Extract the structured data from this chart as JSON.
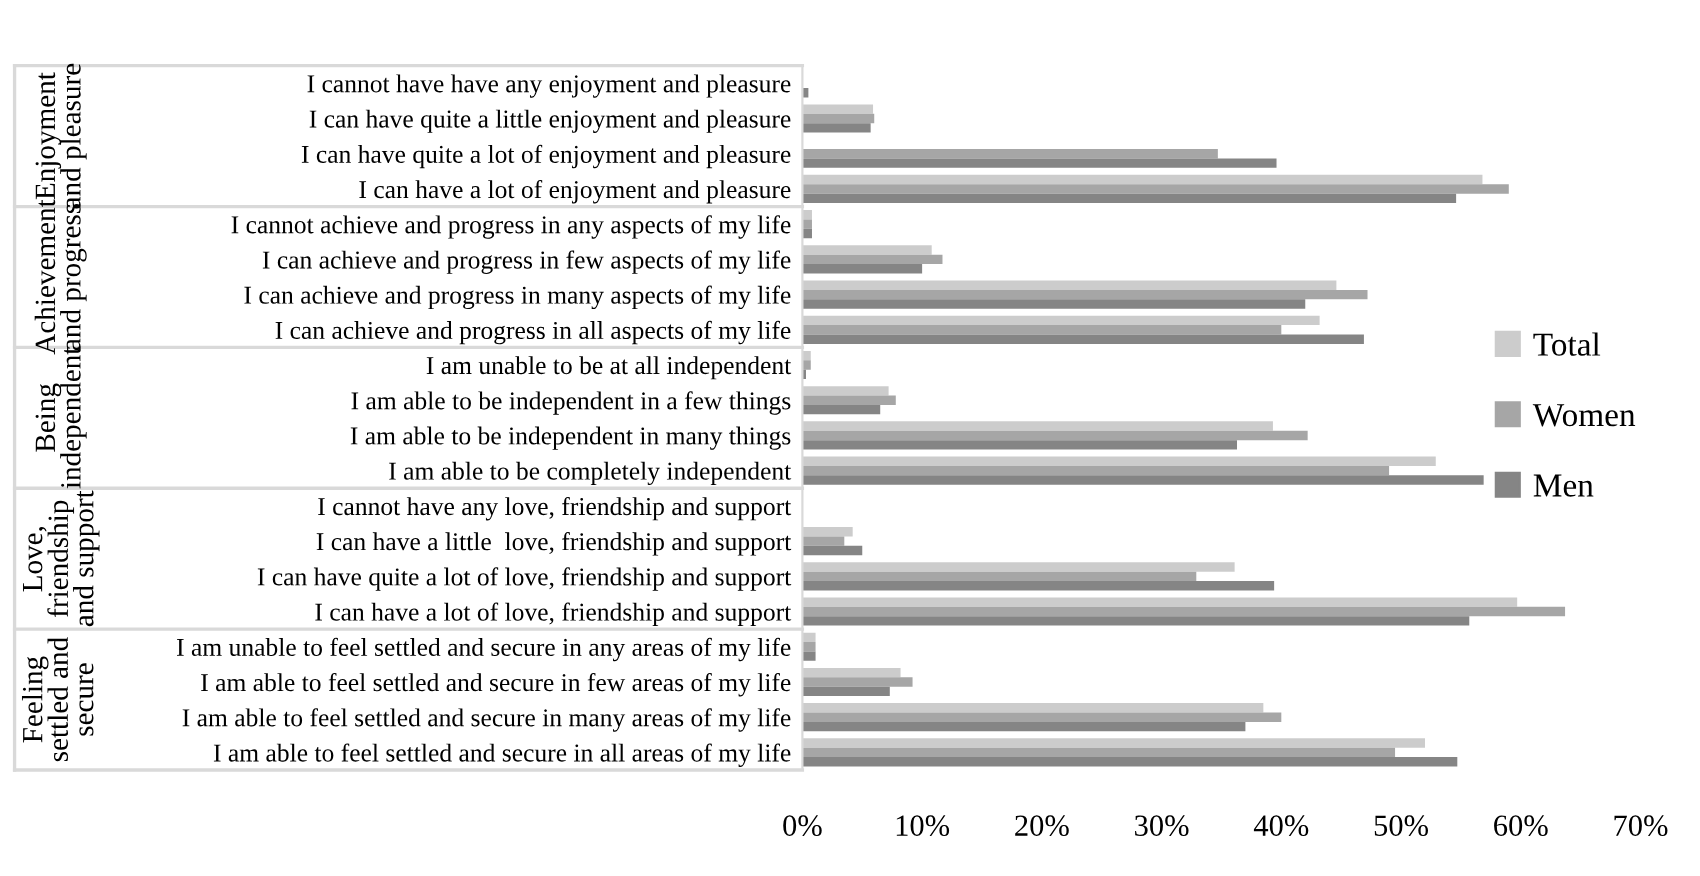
{
  "chart_data": {
    "type": "bar",
    "orientation": "horizontal",
    "categories": [
      "I cannot have have any enjoyment and pleasure",
      "I can have quite a little enjoyment and pleasure",
      "I can have quite a lot of enjoyment and pleasure",
      "I can have a lot of enjoyment and pleasure",
      "I cannot achieve and progress in any aspects of my life",
      "I can achieve and progress in few aspects of my life",
      "I can achieve and progress in many aspects of my life",
      "I can achieve and progress in all aspects of my life",
      "I am unable to be at all independent",
      "I am able to be independent in a few things",
      "I am able to be independent in many things",
      "I am able to be completely independent",
      "I cannot have any love, friendship and support",
      "I can have a little  love, friendship and support",
      "I can have quite a lot of love, friendship and support",
      "I can have a lot of love, friendship and support",
      "I am unable to feel settled and secure in any areas of my life",
      "I am able to feel settled and secure in few areas of my life",
      "I am able to feel settled and secure in many areas of my life",
      "I am able to feel settled and secure in all areas of my life"
    ],
    "series": [
      {
        "name": "Total",
        "color": "#cccccc",
        "values": [
          null,
          5.9,
          null,
          56.8,
          0.8,
          10.8,
          44.6,
          43.2,
          0.7,
          7.2,
          39.3,
          52.9,
          null,
          4.2,
          36.1,
          59.7,
          1.1,
          8.2,
          38.5,
          52.0
        ]
      },
      {
        "name": "Women",
        "color": "#a6a6a6",
        "values": [
          null,
          6.0,
          34.7,
          59.0,
          0.8,
          11.7,
          47.2,
          40.0,
          0.7,
          7.8,
          42.2,
          49.0,
          0,
          3.5,
          32.9,
          63.7,
          1.1,
          9.2,
          40.0,
          49.5
        ]
      },
      {
        "name": "Men",
        "color": "#858585",
        "values": [
          0.5,
          5.7,
          39.6,
          54.6,
          0.8,
          10.0,
          42.0,
          46.9,
          0.3,
          6.5,
          36.3,
          56.9,
          0,
          5.0,
          39.4,
          55.7,
          1.1,
          7.3,
          37.0,
          54.7
        ]
      }
    ],
    "xlim": [
      0,
      70
    ],
    "xticks": [
      {
        "value": 0,
        "label": "0%"
      },
      {
        "value": 10,
        "label": "10%"
      },
      {
        "value": 20,
        "label": "20%"
      },
      {
        "value": 30,
        "label": "30%"
      },
      {
        "value": 40,
        "label": "40%"
      },
      {
        "value": 50,
        "label": "50%"
      },
      {
        "value": 60,
        "label": "60%"
      },
      {
        "value": 70,
        "label": "70%"
      }
    ],
    "annotations": [
      "Enjoyment\nand pleasure",
      "Achievement\nand progress",
      "Being\nindependent",
      "Love,\nfriendship\nand support",
      "Feeling\nsettled and\nsecure"
    ],
    "grid": false,
    "legend": "right"
  }
}
